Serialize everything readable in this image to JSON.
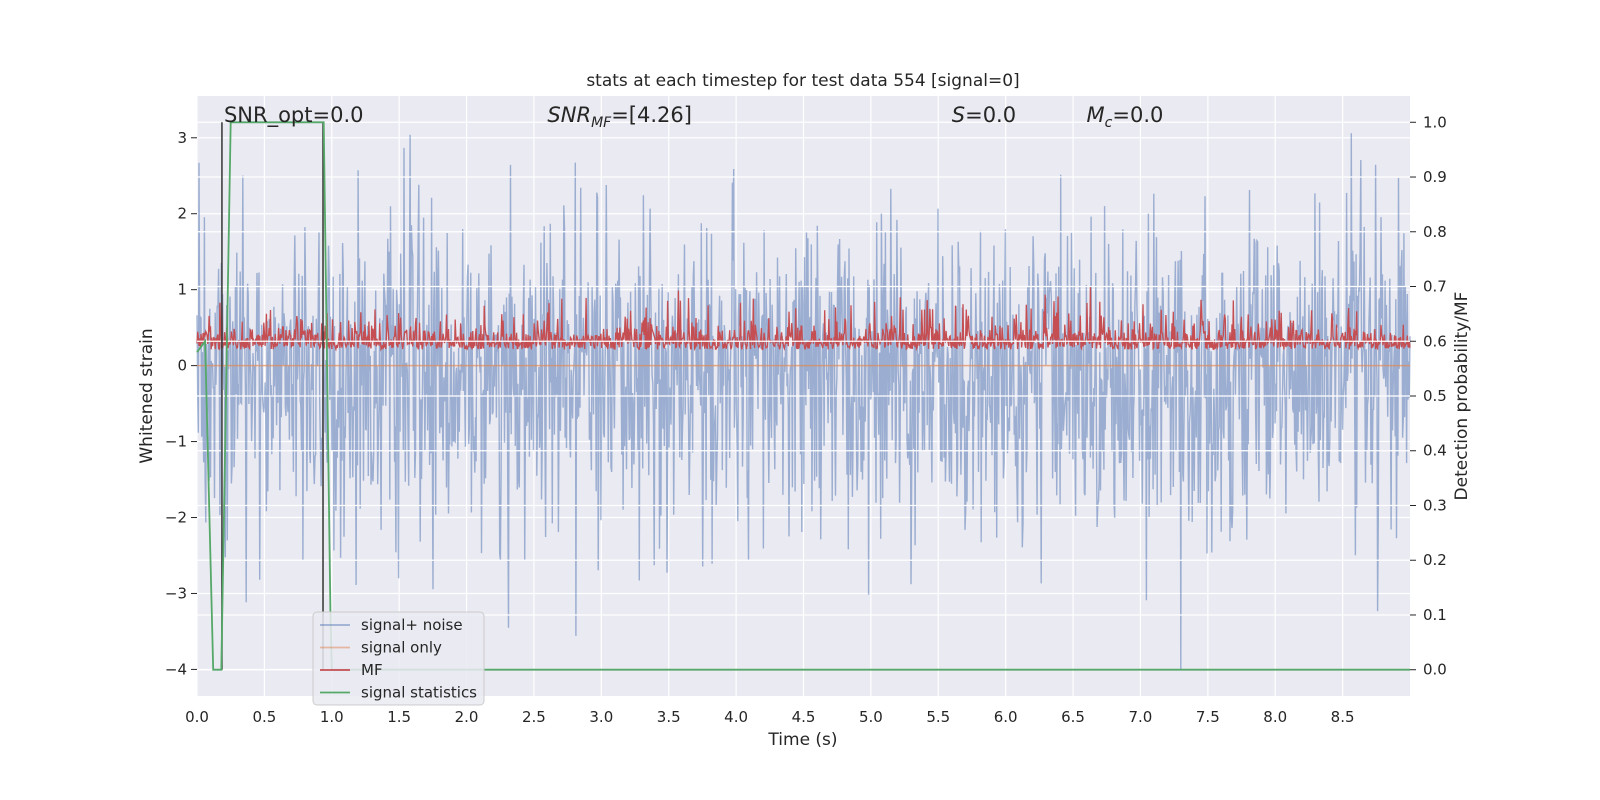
{
  "chart_data": {
    "type": "line",
    "title": "stats at each timestep for test data 554 [signal=0]",
    "xlabel": "Time (s)",
    "ylabel": "Whitened strain",
    "ylabel_right": "Detection probability/MF",
    "xlim": [
      0.0,
      9.0
    ],
    "ylim": [
      -4.35,
      3.55
    ],
    "ylim_right": [
      -0.048,
      1.048
    ],
    "x_ticks": [
      "0.0",
      "0.5",
      "1.0",
      "1.5",
      "2.0",
      "2.5",
      "3.0",
      "3.5",
      "4.0",
      "4.5",
      "5.0",
      "5.5",
      "6.0",
      "6.5",
      "7.0",
      "7.5",
      "8.0",
      "8.5"
    ],
    "y_ticks": [
      "−4",
      "−3",
      "−2",
      "−1",
      "0",
      "1",
      "2",
      "3"
    ],
    "y_ticks_right": [
      "0.0",
      "0.1",
      "0.2",
      "0.3",
      "0.4",
      "0.5",
      "0.6",
      "0.7",
      "0.8",
      "0.9",
      "1.0"
    ],
    "grid": true,
    "legend_position": "lower-left",
    "background": "#eaeaf2",
    "annotations": [
      {
        "id": "snr-opt",
        "text": "SNR_opt=0.0",
        "x": 0.2,
        "y": 3.3
      },
      {
        "id": "snr-mf",
        "text": "SNR",
        "sub": "MF",
        "post": "=[4.26]",
        "x": 2.6,
        "y": 3.3
      },
      {
        "id": "s-stat",
        "text": "S",
        "post": "=0.0",
        "x": 5.6,
        "y": 3.3
      },
      {
        "id": "mc",
        "text": "M",
        "sub": "c",
        "post": "=0.0",
        "x": 6.6,
        "y": 3.3
      }
    ],
    "series": [
      {
        "name": "signal+ noise",
        "color": "#4c72b0",
        "alpha": 0.5,
        "axis": "left",
        "kind": "noise",
        "approx_range": [
          -4.0,
          3.2
        ],
        "n_samples": 1800
      },
      {
        "name": "signal only",
        "color": "#dd8452",
        "alpha": 0.5,
        "axis": "left",
        "kind": "flat",
        "value": 0.0
      },
      {
        "name": "MF",
        "color": "#c44e52",
        "axis": "right",
        "kind": "mf-noise",
        "baseline": 0.6,
        "approx_range": [
          0.56,
          0.7
        ],
        "n_samples": 1800
      },
      {
        "name": "signal statistics",
        "color": "#55a868",
        "axis": "right",
        "kind": "line",
        "x": [
          0.0,
          0.06,
          0.12,
          0.18,
          0.25,
          0.94,
          0.99,
          1.0,
          9.0
        ],
        "y": [
          0.58,
          0.6,
          0.0,
          0.0,
          1.0,
          1.0,
          0.11,
          0.0,
          0.0
        ]
      }
    ],
    "vlines": [
      {
        "x": 0.185,
        "color": "#404040",
        "y_range_right": [
          0.0,
          1.0
        ]
      },
      {
        "x": 0.935,
        "color": "#404040",
        "y_range_right": [
          0.0,
          1.0
        ]
      }
    ]
  }
}
